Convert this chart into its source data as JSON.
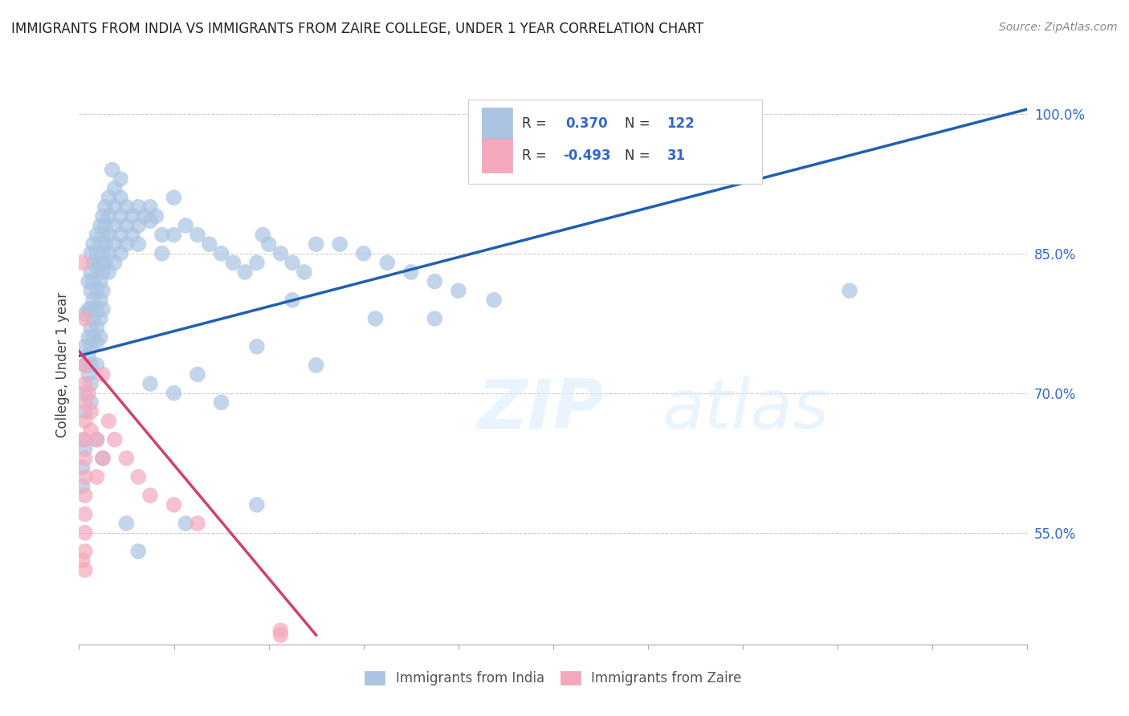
{
  "title": "IMMIGRANTS FROM INDIA VS IMMIGRANTS FROM ZAIRE COLLEGE, UNDER 1 YEAR CORRELATION CHART",
  "source": "Source: ZipAtlas.com",
  "ylabel": "College, Under 1 year",
  "right_yticks": [
    55.0,
    70.0,
    85.0,
    100.0
  ],
  "watermark_zip": "ZIP",
  "watermark_atlas": "atlas",
  "legend_india_R": "0.370",
  "legend_india_N": "122",
  "legend_zaire_R": "-0.493",
  "legend_zaire_N": "31",
  "india_color": "#aac4e2",
  "zaire_color": "#f5a8bc",
  "india_line_color": "#2060b0",
  "zaire_line_color": "#d04070",
  "india_scatter": [
    [
      0.5,
      78.5
    ],
    [
      0.5,
      75.0
    ],
    [
      0.5,
      73.0
    ],
    [
      0.5,
      70.0
    ],
    [
      0.5,
      68.0
    ],
    [
      0.8,
      82.0
    ],
    [
      0.8,
      79.0
    ],
    [
      0.8,
      76.0
    ],
    [
      0.8,
      74.0
    ],
    [
      0.8,
      72.0
    ],
    [
      1.0,
      85.0
    ],
    [
      1.0,
      83.0
    ],
    [
      1.0,
      81.0
    ],
    [
      1.0,
      79.0
    ],
    [
      1.0,
      77.0
    ],
    [
      1.0,
      75.0
    ],
    [
      1.0,
      73.0
    ],
    [
      1.0,
      71.0
    ],
    [
      1.0,
      69.0
    ],
    [
      1.2,
      86.0
    ],
    [
      1.2,
      84.0
    ],
    [
      1.2,
      82.0
    ],
    [
      1.2,
      80.0
    ],
    [
      1.2,
      78.0
    ],
    [
      1.2,
      76.0
    ],
    [
      1.5,
      87.0
    ],
    [
      1.5,
      85.0
    ],
    [
      1.5,
      83.5
    ],
    [
      1.5,
      81.0
    ],
    [
      1.5,
      79.0
    ],
    [
      1.5,
      77.0
    ],
    [
      1.5,
      75.5
    ],
    [
      1.5,
      73.0
    ],
    [
      1.8,
      88.0
    ],
    [
      1.8,
      86.0
    ],
    [
      1.8,
      84.0
    ],
    [
      1.8,
      82.0
    ],
    [
      1.8,
      80.0
    ],
    [
      1.8,
      78.0
    ],
    [
      1.8,
      76.0
    ],
    [
      2.0,
      89.0
    ],
    [
      2.0,
      87.0
    ],
    [
      2.0,
      85.0
    ],
    [
      2.0,
      83.0
    ],
    [
      2.0,
      81.0
    ],
    [
      2.0,
      79.0
    ],
    [
      2.2,
      90.0
    ],
    [
      2.2,
      88.0
    ],
    [
      2.2,
      86.0
    ],
    [
      2.2,
      84.0
    ],
    [
      2.5,
      91.0
    ],
    [
      2.5,
      89.0
    ],
    [
      2.5,
      87.0
    ],
    [
      2.5,
      85.0
    ],
    [
      2.5,
      83.0
    ],
    [
      3.0,
      92.0
    ],
    [
      3.0,
      90.0
    ],
    [
      3.0,
      88.0
    ],
    [
      3.0,
      86.0
    ],
    [
      3.0,
      84.0
    ],
    [
      3.5,
      91.0
    ],
    [
      3.5,
      89.0
    ],
    [
      3.5,
      87.0
    ],
    [
      3.5,
      85.0
    ],
    [
      4.0,
      90.0
    ],
    [
      4.0,
      88.0
    ],
    [
      4.0,
      86.0
    ],
    [
      4.5,
      89.0
    ],
    [
      4.5,
      87.0
    ],
    [
      5.0,
      90.0
    ],
    [
      5.0,
      88.0
    ],
    [
      5.0,
      86.0
    ],
    [
      5.5,
      89.0
    ],
    [
      6.0,
      90.0
    ],
    [
      6.0,
      88.5
    ],
    [
      6.5,
      89.0
    ],
    [
      7.0,
      87.0
    ],
    [
      7.0,
      85.0
    ],
    [
      8.0,
      91.0
    ],
    [
      8.0,
      87.0
    ],
    [
      9.0,
      88.0
    ],
    [
      10.0,
      87.0
    ],
    [
      11.0,
      86.0
    ],
    [
      12.0,
      85.0
    ],
    [
      13.0,
      84.0
    ],
    [
      14.0,
      83.0
    ],
    [
      15.0,
      84.0
    ],
    [
      15.5,
      87.0
    ],
    [
      16.0,
      86.0
    ],
    [
      17.0,
      85.0
    ],
    [
      18.0,
      84.0
    ],
    [
      19.0,
      83.0
    ],
    [
      20.0,
      86.0
    ],
    [
      22.0,
      86.0
    ],
    [
      24.0,
      85.0
    ],
    [
      26.0,
      84.0
    ],
    [
      28.0,
      83.0
    ],
    [
      30.0,
      82.0
    ],
    [
      32.0,
      81.0
    ],
    [
      35.0,
      80.0
    ],
    [
      6.0,
      71.0
    ],
    [
      8.0,
      70.0
    ],
    [
      10.0,
      72.0
    ],
    [
      12.0,
      69.0
    ],
    [
      15.0,
      75.0
    ],
    [
      18.0,
      80.0
    ],
    [
      20.0,
      73.0
    ],
    [
      25.0,
      78.0
    ],
    [
      30.0,
      78.0
    ],
    [
      4.0,
      56.0
    ],
    [
      5.0,
      53.0
    ],
    [
      9.0,
      56.0
    ],
    [
      15.0,
      58.0
    ],
    [
      3.5,
      93.0
    ],
    [
      2.8,
      94.0
    ],
    [
      1.5,
      65.0
    ],
    [
      2.0,
      63.0
    ],
    [
      0.5,
      64.0
    ],
    [
      0.3,
      65.0
    ],
    [
      0.3,
      62.0
    ],
    [
      0.3,
      60.0
    ],
    [
      65.0,
      81.0
    ]
  ],
  "zaire_scatter": [
    [
      0.3,
      84.0
    ],
    [
      0.5,
      78.0
    ],
    [
      0.5,
      73.0
    ],
    [
      0.5,
      71.0
    ],
    [
      0.5,
      69.0
    ],
    [
      0.5,
      67.0
    ],
    [
      0.5,
      65.0
    ],
    [
      0.5,
      63.0
    ],
    [
      0.5,
      61.0
    ],
    [
      0.5,
      59.0
    ],
    [
      0.5,
      57.0
    ],
    [
      0.5,
      55.0
    ],
    [
      0.5,
      53.0
    ],
    [
      0.5,
      51.0
    ],
    [
      0.8,
      70.0
    ],
    [
      1.0,
      68.0
    ],
    [
      1.0,
      66.0
    ],
    [
      1.5,
      65.0
    ],
    [
      1.5,
      61.0
    ],
    [
      2.0,
      63.0
    ],
    [
      2.5,
      67.0
    ],
    [
      3.0,
      65.0
    ],
    [
      4.0,
      63.0
    ],
    [
      5.0,
      61.0
    ],
    [
      6.0,
      59.0
    ],
    [
      8.0,
      58.0
    ],
    [
      10.0,
      56.0
    ],
    [
      2.0,
      72.0
    ],
    [
      0.3,
      52.0
    ],
    [
      17.0,
      44.5
    ],
    [
      17.0,
      44.0
    ]
  ],
  "india_line": [
    [
      0.0,
      74.0
    ],
    [
      80.0,
      100.5
    ]
  ],
  "zaire_line": [
    [
      0.0,
      74.5
    ],
    [
      20.0,
      44.0
    ]
  ],
  "xlim": [
    0.0,
    80.0
  ],
  "ylim": [
    43.0,
    103.0
  ],
  "background_color": "#ffffff",
  "grid_color": "#cccccc",
  "legend_india_label": "Immigrants from India",
  "legend_zaire_label": "Immigrants from Zaire"
}
